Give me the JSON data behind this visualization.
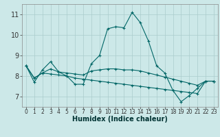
{
  "xlabel": "Humidex (Indice chaleur)",
  "background_color": "#cce8e8",
  "grid_color": "#aacccc",
  "line_color": "#006666",
  "xlim": [
    -0.5,
    23.5
  ],
  "ylim": [
    6.5,
    11.5
  ],
  "yticks": [
    7,
    8,
    9,
    10,
    11
  ],
  "xticks": [
    0,
    1,
    2,
    3,
    4,
    5,
    6,
    7,
    8,
    9,
    10,
    11,
    12,
    13,
    14,
    15,
    16,
    17,
    18,
    19,
    20,
    21,
    22,
    23
  ],
  "series": [
    [
      8.5,
      7.7,
      8.3,
      8.7,
      8.2,
      8.0,
      7.6,
      7.6,
      8.6,
      9.0,
      10.3,
      10.4,
      10.35,
      11.1,
      10.6,
      9.7,
      8.5,
      8.15,
      7.3,
      6.75,
      7.05,
      7.4,
      7.75,
      7.75
    ],
    [
      8.5,
      7.9,
      8.15,
      8.1,
      8.05,
      8.0,
      7.9,
      7.85,
      7.8,
      7.75,
      7.7,
      7.65,
      7.6,
      7.55,
      7.5,
      7.45,
      7.4,
      7.35,
      7.3,
      7.25,
      7.2,
      7.15,
      7.75,
      7.75
    ],
    [
      8.5,
      7.9,
      8.15,
      8.35,
      8.2,
      8.15,
      8.1,
      8.05,
      8.25,
      8.3,
      8.35,
      8.35,
      8.3,
      8.3,
      8.25,
      8.15,
      8.05,
      7.95,
      7.85,
      7.75,
      7.65,
      7.55,
      7.75,
      7.75
    ]
  ]
}
